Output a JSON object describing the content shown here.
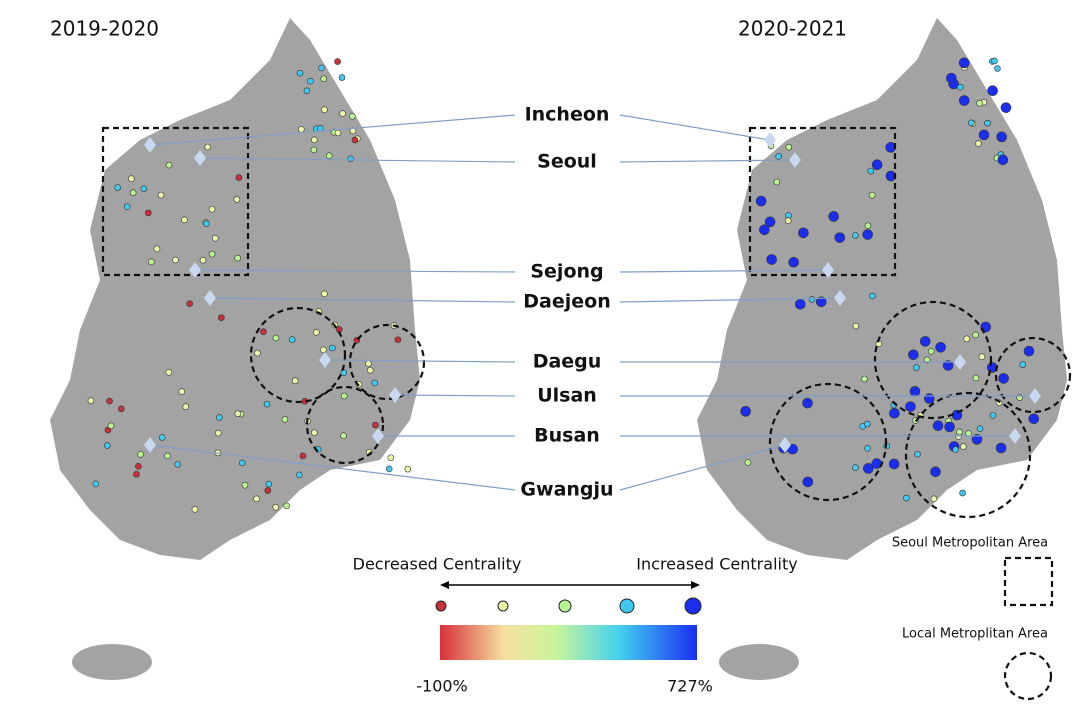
{
  "panels": [
    {
      "title": "2019-2020"
    },
    {
      "title": "2020-2021"
    }
  ],
  "cities": [
    "Incheon",
    "Seoul",
    "Sejong",
    "Daejeon",
    "Daegu",
    "Ulsan",
    "Busan",
    "Gwangju"
  ],
  "legend": {
    "left_label": "Decreased Centrality",
    "right_label": "Increased Centrality",
    "min_label": "-100%",
    "max_label": "727%",
    "areas": [
      {
        "label": "Seoul Metropolitan Area"
      },
      {
        "label": "Local Metroplitan Area"
      }
    ]
  }
}
